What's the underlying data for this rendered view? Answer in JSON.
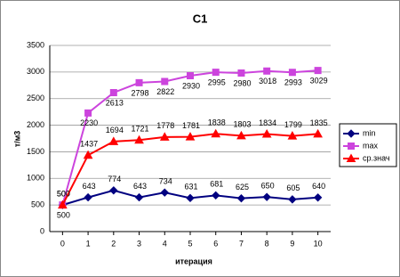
{
  "chart_data": {
    "type": "line",
    "title": "C1",
    "x_label": "итерация",
    "y_label": "т/м3",
    "x": [
      0,
      1,
      2,
      3,
      4,
      5,
      6,
      7,
      8,
      9,
      10
    ],
    "xlim": [
      -0.5,
      10.5
    ],
    "ylim": [
      0,
      3500
    ],
    "yticks": [
      0,
      500,
      1000,
      1500,
      2000,
      2500,
      3000,
      3500
    ],
    "grid": true,
    "legend": "right",
    "series": [
      {
        "name": "min",
        "color": "#000080",
        "marker": "diamond",
        "values": [
          500,
          643,
          774,
          643,
          734,
          631,
          681,
          625,
          650,
          605,
          640
        ]
      },
      {
        "name": "max",
        "color": "#cc44dd",
        "marker": "square",
        "values": [
          500,
          2230,
          2613,
          2798,
          2822,
          2930,
          2995,
          2980,
          3018,
          2993,
          3029
        ]
      },
      {
        "name": "ср.знач",
        "color": "#ff0000",
        "marker": "triangle",
        "values": [
          500,
          1437,
          1694,
          1721,
          1778,
          1781,
          1838,
          1803,
          1834,
          1799,
          1835
        ]
      }
    ]
  }
}
